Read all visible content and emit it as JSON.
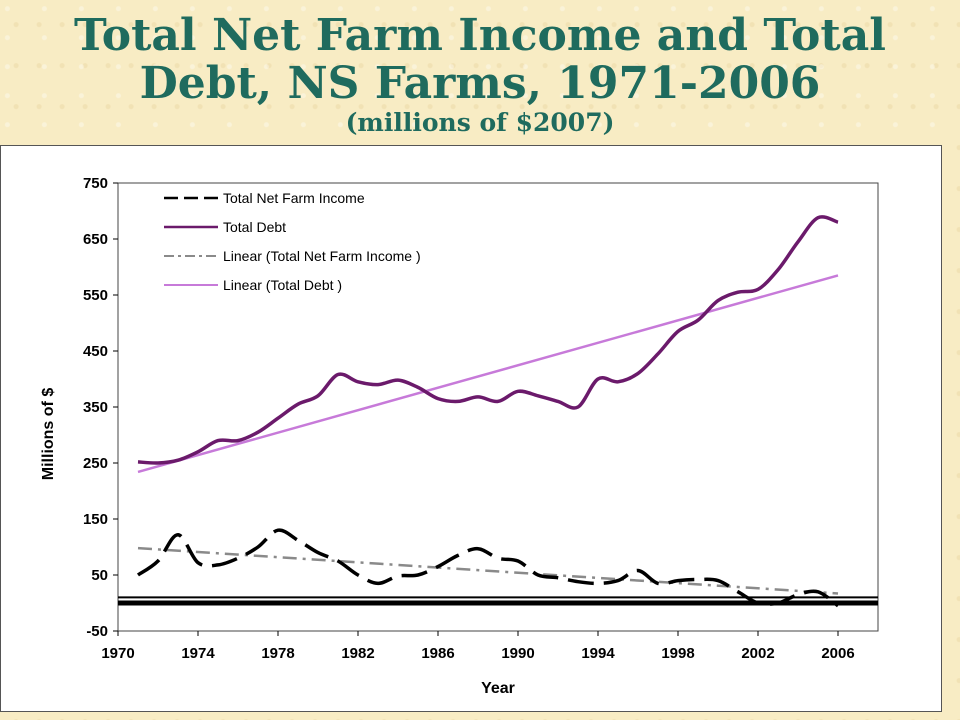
{
  "page": {
    "title_line1": "Total Net Farm Income and Total",
    "title_line2": "Debt, NS Farms, 1971-2006",
    "subtitle": "(millions of $2007)"
  },
  "chart_data": {
    "type": "line",
    "xlabel": "Year",
    "ylabel": "Millions of $",
    "xlim": [
      1970,
      2008
    ],
    "ylim": [
      -50,
      750
    ],
    "x_ticks": [
      1970,
      1974,
      1978,
      1982,
      1986,
      1990,
      1994,
      1998,
      2002,
      2006
    ],
    "y_ticks": [
      -50,
      50,
      150,
      250,
      350,
      450,
      550,
      650,
      750
    ],
    "grid": false,
    "legend_position": "top-left",
    "x": [
      1971,
      1972,
      1973,
      1974,
      1975,
      1976,
      1977,
      1978,
      1979,
      1980,
      1981,
      1982,
      1983,
      1984,
      1985,
      1986,
      1987,
      1988,
      1989,
      1990,
      1991,
      1992,
      1993,
      1994,
      1995,
      1996,
      1997,
      1998,
      1999,
      2000,
      2001,
      2002,
      2003,
      2004,
      2005,
      2006
    ],
    "series": [
      {
        "name": "Total Net Farm Income",
        "style": "dashed",
        "color": "#000000",
        "values": [
          50,
          75,
          122,
          72,
          68,
          80,
          100,
          130,
          112,
          90,
          75,
          50,
          35,
          48,
          50,
          65,
          85,
          97,
          80,
          75,
          50,
          45,
          38,
          35,
          40,
          58,
          35,
          40,
          42,
          40,
          20,
          0,
          0,
          15,
          20,
          -5
        ]
      },
      {
        "name": "Total Debt",
        "style": "solid",
        "color": "#6b1a6b",
        "values": [
          252,
          250,
          255,
          270,
          290,
          290,
          305,
          330,
          355,
          370,
          408,
          395,
          390,
          398,
          385,
          365,
          360,
          368,
          360,
          378,
          370,
          360,
          350,
          400,
          395,
          410,
          445,
          485,
          505,
          540,
          555,
          560,
          595,
          645,
          688,
          680
        ]
      },
      {
        "name": "Linear (Total Net Farm Income )",
        "style": "dash-dot",
        "color": "#8a8a8a",
        "values_endpoints": [
          98,
          17
        ]
      },
      {
        "name": "Linear (Total Debt )",
        "style": "solid",
        "color": "#c77ad9",
        "values_endpoints": [
          234,
          585
        ]
      }
    ],
    "reference_lines": [
      {
        "y": 10,
        "style": "thin"
      },
      {
        "y": 0,
        "style": "thick"
      }
    ]
  }
}
